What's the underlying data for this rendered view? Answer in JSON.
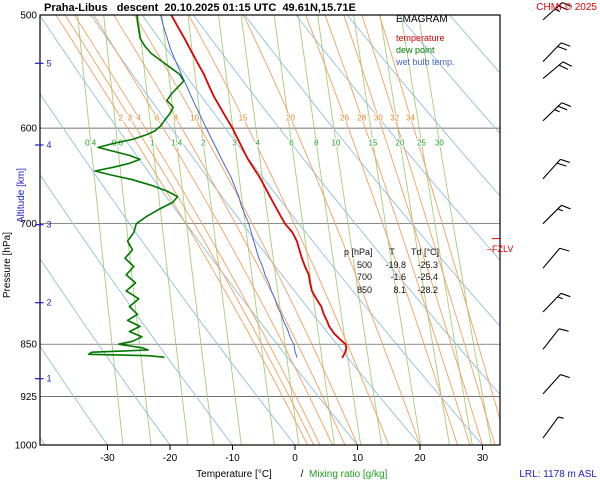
{
  "header": {
    "title": "Praha-Libus   descent  20.10.2025 01:15 UTC  49.61N,15.71E",
    "copyright": "CHMI © 2025"
  },
  "legend": {
    "title": "EMAGRAM",
    "items": [
      {
        "label": "temperature",
        "color": "#dd0000"
      },
      {
        "label": "dew point",
        "color": "#007700"
      },
      {
        "label": "wet bulb temp.",
        "color": "#4466cc"
      }
    ]
  },
  "axes": {
    "pressure_label": "Pressure [hPa]",
    "altitude_label": "Altitude [km]",
    "x_label": "Temperature [°C]",
    "x_label_sep": "/",
    "mixing_label": "Mixing ratio [g/kg]"
  },
  "annotations": {
    "fzlv_prefix": "–",
    "fzlv": "FZLV",
    "lrl": "LRL: 1178 m ASL"
  },
  "table": {
    "headers": [
      "p [hPa]",
      "T",
      "Td [°C]"
    ],
    "rows": [
      [
        "500",
        "-19.8",
        "-25.3"
      ],
      [
        "700",
        "-1.6",
        "-25.4"
      ],
      [
        "850",
        "8.1",
        "-28.2"
      ]
    ]
  },
  "chart_data": {
    "type": "line",
    "title": "Praha-Libus descent 20.10.2025 01:15 UTC 49.61N,15.71E",
    "xlabel": "Temperature [°C]",
    "ylabel": "Pressure [hPa]",
    "ylabel2": "Altitude [km]",
    "y_scale": "log-inverted",
    "x_range": [
      -40.8,
      32.8
    ],
    "p_range": [
      500,
      1000
    ],
    "pressure_ticks": [
      500,
      600,
      700,
      850,
      925,
      1000
    ],
    "isobar_lines": [
      600,
      700,
      850,
      925
    ],
    "temp_ticks": [
      -30,
      -20,
      -10,
      0,
      10,
      20,
      30
    ],
    "altitude_ticks": [
      {
        "km": 5,
        "p": 540.5
      },
      {
        "km": 4,
        "p": 616.6
      },
      {
        "km": 3,
        "p": 701.1
      },
      {
        "km": 2,
        "p": 795.0
      },
      {
        "km": 1,
        "p": 898.7
      }
    ],
    "dry_adiabats_theta": [
      -40,
      -30,
      -20,
      -10,
      0,
      10,
      20,
      30,
      40,
      50,
      60,
      70,
      80,
      90,
      100
    ],
    "moist_adiabats_thetaw": [
      2,
      3,
      4,
      6,
      8,
      10,
      15,
      20,
      26,
      28,
      30,
      32,
      34
    ],
    "mixing_ratio_lines": [
      0.4,
      0.6,
      1,
      1.4,
      2,
      3,
      4,
      6,
      8,
      10,
      15,
      20,
      25,
      30
    ],
    "moist_label_p": 590,
    "mixing_label_p": 614,
    "freezing_level_p": 717,
    "palette": {
      "isobar": "#444444",
      "dry_adiabat": "#92c0dc",
      "moist_adiabat": "#f0a060",
      "moist_label": "#e8821a",
      "mixing_ratio": "#abc97a",
      "mixing_label": "#1fa01f",
      "axis_blue": "#1a1acc",
      "annotation_red": "#dd0000",
      "barb": "#000000"
    },
    "series": [
      {
        "name": "wet_bulb",
        "color": "#4466cc",
        "width": 1.0,
        "points": [
          [
            868,
            0.3
          ],
          [
            860,
            0.0
          ],
          [
            850,
            -0.2
          ],
          [
            840,
            -0.8
          ],
          [
            830,
            -1.2
          ],
          [
            820,
            -1.8
          ],
          [
            810,
            -2.2
          ],
          [
            800,
            -2.8
          ],
          [
            790,
            -3.2
          ],
          [
            780,
            -3.8
          ],
          [
            770,
            -4.2
          ],
          [
            760,
            -4.8
          ],
          [
            750,
            -5.2
          ],
          [
            740,
            -5.8
          ],
          [
            730,
            -6.2
          ],
          [
            720,
            -6.6
          ],
          [
            710,
            -7.0
          ],
          [
            700,
            -7.4
          ],
          [
            690,
            -8.0
          ],
          [
            680,
            -8.6
          ],
          [
            670,
            -9.0
          ],
          [
            660,
            -9.6
          ],
          [
            650,
            -10.2
          ],
          [
            640,
            -11.0
          ],
          [
            630,
            -11.8
          ],
          [
            620,
            -12.6
          ],
          [
            610,
            -13.4
          ],
          [
            600,
            -14.2
          ],
          [
            590,
            -15.0
          ],
          [
            580,
            -15.8
          ],
          [
            570,
            -16.6
          ],
          [
            560,
            -17.4
          ],
          [
            550,
            -18.2
          ],
          [
            540,
            -19.0
          ],
          [
            530,
            -19.8
          ],
          [
            520,
            -20.4
          ],
          [
            510,
            -21.0
          ],
          [
            500,
            -21.5
          ]
        ]
      },
      {
        "name": "dew_point",
        "color": "#007700",
        "width": 1.6,
        "points": [
          [
            868,
            -21
          ],
          [
            866,
            -23.5
          ],
          [
            864,
            -33
          ],
          [
            861,
            -32.5
          ],
          [
            858,
            -23.5
          ],
          [
            855,
            -24.5
          ],
          [
            850,
            -28.2
          ],
          [
            846,
            -26
          ],
          [
            840,
            -24.5
          ],
          [
            833,
            -26.5
          ],
          [
            826,
            -24.8
          ],
          [
            818,
            -26.8
          ],
          [
            810,
            -25.2
          ],
          [
            800,
            -26.5
          ],
          [
            790,
            -25
          ],
          [
            780,
            -27
          ],
          [
            770,
            -25.5
          ],
          [
            760,
            -27
          ],
          [
            750,
            -25.8
          ],
          [
            740,
            -27.2
          ],
          [
            730,
            -26
          ],
          [
            720,
            -26.8
          ],
          [
            710,
            -25.8
          ],
          [
            700,
            -25.4
          ],
          [
            692,
            -23.8
          ],
          [
            684,
            -21.8
          ],
          [
            676,
            -19.5
          ],
          [
            670,
            -18.8
          ],
          [
            664,
            -20.5
          ],
          [
            658,
            -23
          ],
          [
            652,
            -26
          ],
          [
            647,
            -29.5
          ],
          [
            643,
            -32
          ],
          [
            639,
            -29
          ],
          [
            635,
            -26.5
          ],
          [
            631,
            -24.8
          ],
          [
            627,
            -26.5
          ],
          [
            623,
            -29
          ],
          [
            619,
            -31.5
          ],
          [
            615,
            -29
          ],
          [
            611,
            -26
          ],
          [
            607,
            -24
          ],
          [
            603,
            -22.5
          ],
          [
            598,
            -21.5
          ],
          [
            592,
            -20.8
          ],
          [
            586,
            -20
          ],
          [
            580,
            -19.5
          ],
          [
            574,
            -20.5
          ],
          [
            568,
            -19.8
          ],
          [
            562,
            -18.8
          ],
          [
            556,
            -17.8
          ],
          [
            550,
            -18.5
          ],
          [
            544,
            -20
          ],
          [
            538,
            -21.5
          ],
          [
            532,
            -23
          ],
          [
            526,
            -24
          ],
          [
            519,
            -24.8
          ],
          [
            512,
            -25
          ],
          [
            506,
            -25.2
          ],
          [
            500,
            -25.3
          ]
        ]
      },
      {
        "name": "temperature",
        "color": "#dd0000",
        "width": 1.8,
        "points": [
          [
            868,
            7.6
          ],
          [
            862,
            8.0
          ],
          [
            855,
            8.2
          ],
          [
            850,
            8.1
          ],
          [
            845,
            7.4
          ],
          [
            840,
            6.8
          ],
          [
            835,
            6.2
          ],
          [
            830,
            5.8
          ],
          [
            825,
            5.4
          ],
          [
            820,
            5.2
          ],
          [
            815,
            4.9
          ],
          [
            810,
            4.6
          ],
          [
            805,
            4.4
          ],
          [
            800,
            4.2
          ],
          [
            790,
            3.4
          ],
          [
            780,
            2.7
          ],
          [
            770,
            2.4
          ],
          [
            760,
            2.2
          ],
          [
            750,
            1.6
          ],
          [
            740,
            1.1
          ],
          [
            730,
            0.7
          ],
          [
            720,
            0.3
          ],
          [
            710,
            -0.4
          ],
          [
            700,
            -1.6
          ],
          [
            690,
            -2.4
          ],
          [
            680,
            -3.2
          ],
          [
            670,
            -4.0
          ],
          [
            660,
            -4.8
          ],
          [
            650,
            -5.6
          ],
          [
            640,
            -6.6
          ],
          [
            630,
            -7.6
          ],
          [
            620,
            -8.4
          ],
          [
            610,
            -9.2
          ],
          [
            600,
            -10.0
          ],
          [
            590,
            -11.0
          ],
          [
            580,
            -12.0
          ],
          [
            570,
            -13.0
          ],
          [
            560,
            -13.8
          ],
          [
            550,
            -14.6
          ],
          [
            540,
            -15.6
          ],
          [
            530,
            -16.6
          ],
          [
            520,
            -17.6
          ],
          [
            510,
            -18.7
          ],
          [
            500,
            -19.8
          ]
        ]
      }
    ],
    "wind_barbs": [
      {
        "p": 504,
        "full": 2,
        "half": 1,
        "rot": 48
      },
      {
        "p": 539,
        "full": 2,
        "half": 0,
        "rot": 44
      },
      {
        "p": 554,
        "full": 2,
        "half": 0,
        "rot": 50
      },
      {
        "p": 593,
        "full": 2,
        "half": 1,
        "rot": 46
      },
      {
        "p": 651,
        "full": 2,
        "half": 0,
        "rot": 42
      },
      {
        "p": 700,
        "full": 1,
        "half": 1,
        "rot": 45
      },
      {
        "p": 752,
        "full": 1,
        "half": 0,
        "rot": 40
      },
      {
        "p": 807,
        "full": 1,
        "half": 1,
        "rot": 44
      },
      {
        "p": 857,
        "full": 1,
        "half": 0,
        "rot": 38
      },
      {
        "p": 921,
        "full": 1,
        "half": 0,
        "rot": 42
      },
      {
        "p": 989,
        "full": 0,
        "half": 1,
        "rot": 36
      }
    ]
  }
}
